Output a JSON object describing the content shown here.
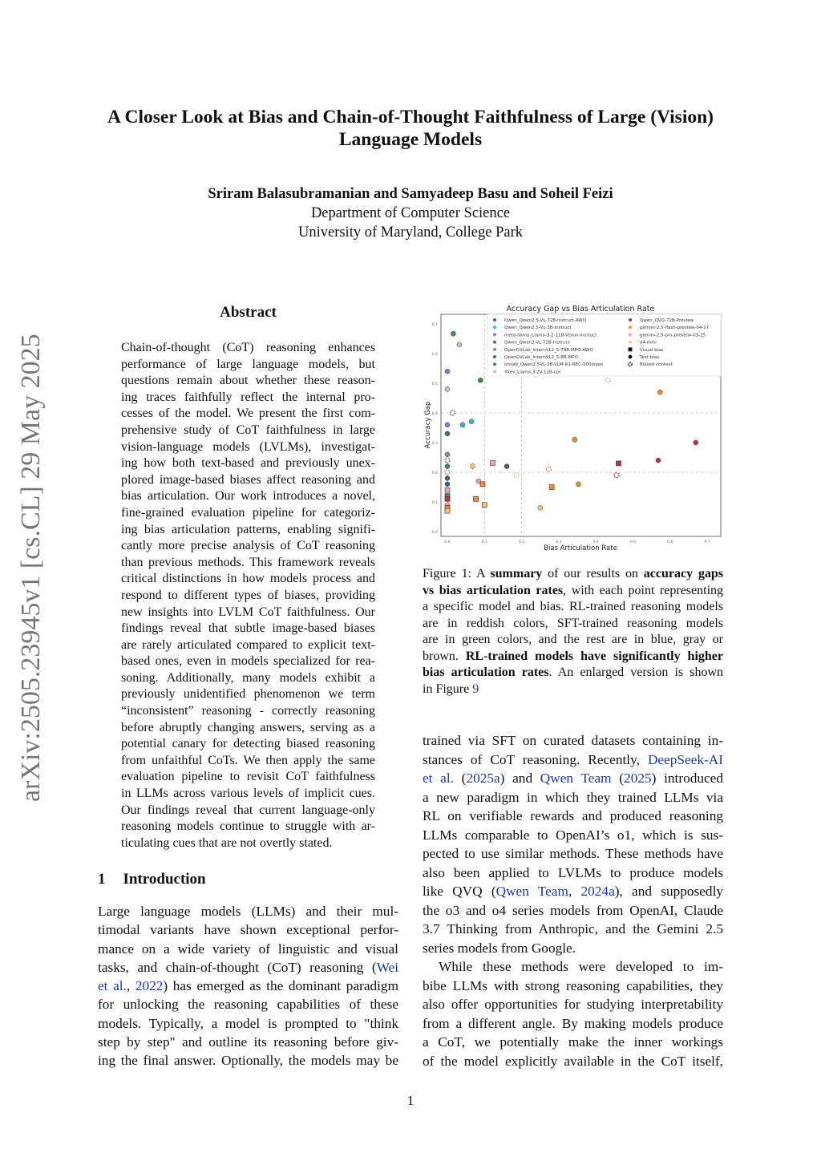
{
  "stamp": "arXiv:2505.23945v1  [cs.CL]  29 May 2025",
  "title_lines": [
    "A Closer Look at Bias and Chain-of-Thought Faithfulness of Large (Vision)",
    "Language Models"
  ],
  "authors": "Sriram Balasubramanian  and  Samyadeep Basu  and  Soheil Feizi",
  "affiliation": [
    "Department of Computer Science",
    "University of Maryland, College Park"
  ],
  "abstract_heading": "Abstract",
  "abstract_lines": [
    "Chain-of-thought (CoT) reasoning enhances",
    "performance of large language models, but",
    "questions remain about whether these reason-",
    "ing traces faithfully reflect the internal pro-",
    "cesses of the model. We present the first com-",
    "prehensive study of CoT faithfulness in large",
    "vision-language models (LVLMs), investigat-",
    "ing how both text-based and previously unex-",
    "plored image-based biases affect reasoning and",
    "bias articulation. Our work introduces a novel,",
    "fine-grained evaluation pipeline for categoriz-",
    "ing bias articulation patterns, enabling signifi-",
    "cantly more precise analysis of CoT reasoning",
    "than previous methods. This framework reveals",
    "critical distinctions in how models process and",
    "respond to different types of biases, providing",
    "new insights into LVLM CoT faithfulness. Our",
    "findings reveal that subtle image-based biases",
    "are rarely articulated compared to explicit text-",
    "based ones, even in models specialized for rea-",
    "soning. Additionally, many models exhibit a",
    "previously unidentified phenomenon we term",
    "“inconsistent” reasoning - correctly reasoning",
    "before abruptly changing answers, serving as a",
    "potential canary for detecting biased reasoning",
    "from unfaithful CoTs. We then apply the same",
    "evaluation pipeline to revisit CoT faithfulness",
    "in LLMs across various levels of implicit cues.",
    "Our findings reveal that current language-only",
    "reasoning models continue to struggle with ar-",
    "ticulating cues that are not overtly stated."
  ],
  "intro_heading": {
    "number": "1",
    "title": "Introduction"
  },
  "intro_lines": [
    [
      [
        "Large language models (LLMs) and their mul-"
      ]
    ],
    [
      [
        "timodal variants have shown exceptional perfor-"
      ]
    ],
    [
      [
        "mance on a wide variety of linguistic and visual"
      ]
    ],
    [
      [
        "tasks, and chain-of-thought (CoT) reasoning ("
      ],
      [
        "Wei",
        "l"
      ]
    ],
    [
      [
        "et al.",
        "l"
      ],
      [
        ", "
      ],
      [
        "2022",
        "l"
      ],
      [
        ") has emerged as the dominant paradigm"
      ]
    ],
    [
      [
        "for unlocking the reasoning capabilities of these"
      ]
    ],
    [
      [
        "models. Typically, a model is prompted to \"think"
      ]
    ],
    [
      [
        "step by step\" and outline its reasoning before giv-"
      ]
    ],
    [
      [
        "ing the final answer. Optionally, the models may be"
      ]
    ]
  ],
  "right_lines": [
    [
      [
        "trained via SFT on curated datasets containing in-"
      ]
    ],
    [
      [
        "stances of CoT reasoning. Recently, "
      ],
      [
        "DeepSeek-AI",
        "l"
      ]
    ],
    [
      [
        "et al.",
        "l"
      ],
      [
        " ("
      ],
      [
        "2025a",
        "l"
      ],
      [
        ") and "
      ],
      [
        "Qwen Team",
        "l"
      ],
      [
        " ("
      ],
      [
        "2025",
        "l"
      ],
      [
        ") introduced"
      ]
    ],
    [
      [
        "a new paradigm in which they trained LLMs via"
      ]
    ],
    [
      [
        "RL on verifiable rewards and produced reasoning"
      ]
    ],
    [
      [
        "LLMs comparable to OpenAI’s o1, which is sus-"
      ]
    ],
    [
      [
        "pected to use similar methods. These methods have"
      ]
    ],
    [
      [
        "also been applied to LVLMs to produce models"
      ]
    ],
    [
      [
        "like QVQ ("
      ],
      [
        "Qwen Team",
        "l"
      ],
      [
        ", "
      ],
      [
        "2024a",
        "l"
      ],
      [
        "), and supposedly"
      ]
    ],
    [
      [
        "the o3 and o4 series models from OpenAI, Claude"
      ]
    ],
    [
      [
        "3.7 Thinking from Anthropic, and the Gemini 2.5"
      ]
    ],
    [
      [
        "series models from Google."
      ]
    ],
    [
      [
        "While these methods were developed to im-"
      ]
    ],
    [
      [
        "bibe LLMs with strong reasoning capabilities, they"
      ]
    ],
    [
      [
        "also offer opportunities for studying interpretability"
      ]
    ],
    [
      [
        "from a different angle. By making models produce"
      ]
    ],
    [
      [
        "a CoT, we potentially make the inner workings"
      ]
    ],
    [
      [
        "of the model explicitly available in the CoT itself,"
      ]
    ]
  ],
  "caption_lines": [
    [
      [
        "Figure 1: A "
      ],
      [
        "summary",
        "b"
      ],
      [
        " of our results on "
      ],
      [
        "accuracy gaps",
        "b"
      ]
    ],
    [
      [
        "vs bias articulation rates",
        "b"
      ],
      [
        ", with each point representing"
      ]
    ],
    [
      [
        "a specific model and bias. RL-trained reasoning models"
      ]
    ],
    [
      [
        "are in reddish colors, SFT-trained reasoning models"
      ]
    ],
    [
      [
        "are in green colors, and the rest are in blue, gray or"
      ]
    ],
    [
      [
        "brown. "
      ],
      [
        "RL-trained models have significantly higher",
        "b"
      ]
    ],
    [
      [
        "bias articulation rates",
        "b"
      ],
      [
        ". An enlarged version is shown"
      ]
    ],
    [
      [
        "in Figure "
      ],
      [
        "9",
        "l"
      ]
    ]
  ],
  "page_number": "1",
  "chart_data": {
    "type": "scatter",
    "title": "Accuracy Gap vs Bias Articulation Rate",
    "xlabel": "Bias Articulation Rate",
    "ylabel": "Accuracy Gap",
    "xlim": [
      -0.02,
      0.73
    ],
    "ylim": [
      -0.02,
      0.72
    ],
    "xticks": [
      0.0,
      0.1,
      0.2,
      0.3,
      0.4,
      0.5,
      0.6,
      0.7
    ],
    "yticks": [
      0.0,
      0.1,
      0.2,
      0.3,
      0.4,
      0.5,
      0.6,
      0.7
    ],
    "reference_lines": {
      "x": [
        0.1,
        0.2
      ],
      "y": [
        0.2,
        0.4
      ]
    },
    "legend_placement": "top-right",
    "models": [
      {
        "name": "Qwen_Qwen2.5-VL-72B-Instruct-AWQ",
        "color": "#2b6aa8"
      },
      {
        "name": "Qwen_Qwen2.5-VL-3B-Instruct",
        "color": "#3bb6c6"
      },
      {
        "name": "meta-llama_Llama-3.2-11B-Vision-Instruct",
        "color": "#8a7cc0"
      },
      {
        "name": "Qwen_Qwen2-VL-72B-Instruct",
        "color": "#4a6b8c"
      },
      {
        "name": "OpenGVLab_InternVL2_5-78B-MPO-AWQ",
        "color": "#8c8c8c"
      },
      {
        "name": "OpenGVLab_InternVL2_5-8B-MPO",
        "color": "#5c5c5c"
      },
      {
        "name": "omlab_Qwen2.5VL-3B-VLM-R1-REC-500steps",
        "color": "#3d8b4f"
      },
      {
        "name": "Xkev_Llama-3.2V-11B-cot",
        "color": "#a6d89c"
      },
      {
        "name": "Qwen_QVQ-72B-Preview",
        "color": "#c0304a"
      },
      {
        "name": "gemini-2.5-flash-preview-04-17",
        "color": "#f08a30"
      },
      {
        "name": "gemini-2.5-pro-preview-03-25",
        "color": "#f0a0ae"
      },
      {
        "name": "o4-mini",
        "color": "#f5c07a"
      }
    ],
    "bias_types": [
      {
        "key": "v",
        "name": "Visual bias"
      },
      {
        "key": "t",
        "name": "Text bias"
      },
      {
        "key": "c",
        "name": "Biased context"
      }
    ],
    "points": [
      {
        "x": 0.016,
        "y": 0.667,
        "m": 6,
        "b": "t"
      },
      {
        "x": 0.032,
        "y": 0.63,
        "m": 7,
        "b": "t"
      },
      {
        "x": 0.0,
        "y": 0.54,
        "m": 2,
        "b": "t"
      },
      {
        "x": 0.089,
        "y": 0.51,
        "m": 6,
        "b": "t"
      },
      {
        "x": 0.0,
        "y": 0.48,
        "m": 7,
        "b": "t"
      },
      {
        "x": 0.014,
        "y": 0.4,
        "m": 5,
        "b": "c"
      },
      {
        "x": 0.0,
        "y": 0.36,
        "m": 2,
        "b": "t"
      },
      {
        "x": 0.041,
        "y": 0.36,
        "m": 1,
        "b": "t"
      },
      {
        "x": 0.065,
        "y": 0.371,
        "m": 1,
        "b": "t"
      },
      {
        "x": 0.0,
        "y": 0.33,
        "m": 3,
        "b": "t"
      },
      {
        "x": 0.432,
        "y": 0.51,
        "m": 10,
        "b": "c"
      },
      {
        "x": 0.573,
        "y": 0.47,
        "m": 9,
        "b": "t"
      },
      {
        "x": 0.343,
        "y": 0.31,
        "m": 9,
        "b": "t"
      },
      {
        "x": 0.669,
        "y": 0.3,
        "m": 8,
        "b": "t"
      },
      {
        "x": 0.0,
        "y": 0.26,
        "m": 4,
        "b": "t"
      },
      {
        "x": 0.0,
        "y": 0.24,
        "m": 5,
        "b": "c"
      },
      {
        "x": 0.0,
        "y": 0.22,
        "m": 6,
        "b": "t"
      },
      {
        "x": 0.0,
        "y": 0.2,
        "m": 4,
        "b": "c"
      },
      {
        "x": 0.0,
        "y": 0.18,
        "m": 5,
        "b": "t"
      },
      {
        "x": 0.0,
        "y": 0.16,
        "m": 0,
        "b": "t"
      },
      {
        "x": 0.0,
        "y": 0.14,
        "m": 10,
        "b": "v"
      },
      {
        "x": 0.0,
        "y": 0.12,
        "m": 6,
        "b": "v"
      },
      {
        "x": 0.0,
        "y": 0.11,
        "m": 8,
        "b": "v"
      },
      {
        "x": 0.0,
        "y": 0.09,
        "m": 10,
        "b": "t"
      },
      {
        "x": 0.0,
        "y": 0.08,
        "m": 9,
        "b": "v"
      },
      {
        "x": 0.0,
        "y": 0.07,
        "m": 11,
        "b": "v"
      },
      {
        "x": 0.068,
        "y": 0.22,
        "m": 11,
        "b": "t"
      },
      {
        "x": 0.122,
        "y": 0.231,
        "m": 10,
        "b": "v"
      },
      {
        "x": 0.16,
        "y": 0.22,
        "m": 5,
        "b": "t"
      },
      {
        "x": 0.185,
        "y": 0.19,
        "m": 11,
        "b": "c"
      },
      {
        "x": 0.084,
        "y": 0.17,
        "m": 10,
        "b": "t"
      },
      {
        "x": 0.095,
        "y": 0.16,
        "m": 9,
        "b": "v"
      },
      {
        "x": 0.077,
        "y": 0.11,
        "m": 9,
        "b": "v"
      },
      {
        "x": 0.1,
        "y": 0.09,
        "m": 11,
        "b": "v"
      },
      {
        "x": 0.273,
        "y": 0.21,
        "m": 9,
        "b": "c"
      },
      {
        "x": 0.281,
        "y": 0.15,
        "m": 9,
        "b": "v"
      },
      {
        "x": 0.353,
        "y": 0.16,
        "m": 9,
        "b": "t"
      },
      {
        "x": 0.25,
        "y": 0.08,
        "m": 11,
        "b": "t"
      },
      {
        "x": 0.461,
        "y": 0.23,
        "m": 8,
        "b": "v"
      },
      {
        "x": 0.456,
        "y": 0.19,
        "m": 8,
        "b": "c"
      },
      {
        "x": 0.568,
        "y": 0.24,
        "m": 8,
        "b": "t"
      }
    ]
  }
}
